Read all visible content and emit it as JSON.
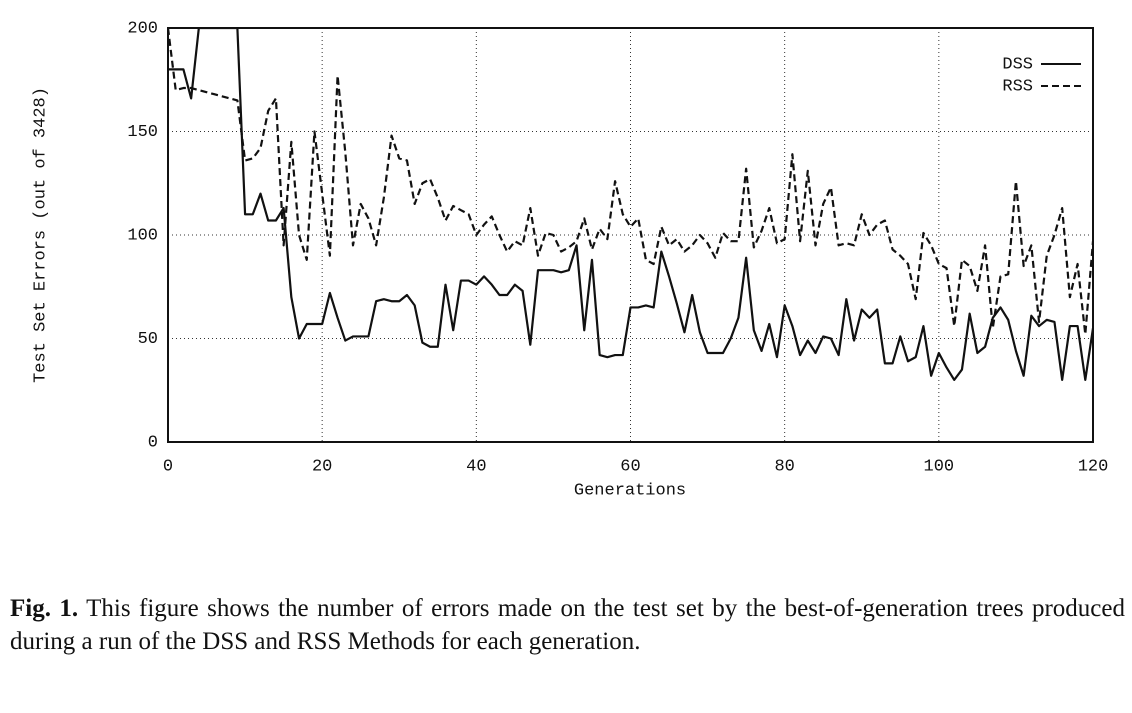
{
  "chart_data": {
    "type": "line",
    "ylabel": "Test Set Errors (out of 3428)",
    "xlabel": "Generations",
    "x": [
      0,
      1,
      2,
      3,
      4,
      5,
      6,
      7,
      8,
      9,
      10,
      11,
      12,
      13,
      14,
      15,
      16,
      17,
      18,
      19,
      20,
      21,
      22,
      23,
      24,
      25,
      26,
      27,
      28,
      29,
      30,
      31,
      32,
      33,
      34,
      35,
      36,
      37,
      38,
      39,
      40,
      41,
      42,
      43,
      44,
      45,
      46,
      47,
      48,
      49,
      50,
      51,
      52,
      53,
      54,
      55,
      56,
      57,
      58,
      59,
      60,
      61,
      62,
      63,
      64,
      65,
      66,
      67,
      68,
      69,
      70,
      71,
      72,
      73,
      74,
      75,
      76,
      77,
      78,
      79,
      80,
      81,
      82,
      83,
      84,
      85,
      86,
      87,
      88,
      89,
      90,
      91,
      92,
      93,
      94,
      95,
      96,
      97,
      98,
      99,
      100,
      101,
      102,
      103,
      104,
      105,
      106,
      107,
      108,
      109,
      110,
      111,
      112,
      113,
      114,
      115,
      116,
      117,
      118,
      119,
      120
    ],
    "series": [
      {
        "name": "DSS",
        "color": "#111111",
        "dash": "solid",
        "values": [
          180,
          180,
          180,
          166,
          200,
          200,
          200,
          200,
          200,
          200,
          110,
          110,
          120,
          107,
          107,
          113,
          70,
          50,
          57,
          57,
          57,
          72,
          60,
          49,
          51,
          51,
          51,
          68,
          69,
          68,
          68,
          71,
          66,
          48,
          46,
          46,
          76,
          54,
          78,
          78,
          76,
          80,
          76,
          71,
          71,
          76,
          73,
          47,
          83,
          83,
          83,
          82,
          83,
          95,
          54,
          88,
          42,
          41,
          42,
          42,
          65,
          65,
          66,
          65,
          92,
          80,
          67,
          53,
          71,
          53,
          43,
          43,
          43,
          50,
          60,
          89,
          54,
          44,
          57,
          41,
          66,
          56,
          42,
          49,
          43,
          51,
          50,
          42,
          69,
          49,
          64,
          60,
          64,
          38,
          38,
          51,
          39,
          41,
          56,
          32,
          43,
          36,
          30,
          35,
          62,
          43,
          46,
          60,
          65,
          59,
          44,
          32,
          61,
          56,
          59,
          58,
          30,
          56,
          56,
          30,
          55
        ]
      },
      {
        "name": "RSS",
        "color": "#111111",
        "dash": "dashed",
        "values": [
          200,
          170,
          171,
          171,
          170,
          169,
          168,
          167,
          166,
          165,
          136,
          137,
          142,
          160,
          166,
          95,
          145,
          100,
          88,
          150,
          120,
          90,
          177,
          140,
          95,
          115,
          108,
          95,
          118,
          148,
          137,
          136,
          115,
          125,
          127,
          118,
          107,
          114,
          112,
          110,
          100,
          105,
          109,
          100,
          92,
          97,
          95,
          113,
          90,
          101,
          100,
          92,
          94,
          97,
          108,
          93,
          103,
          98,
          126,
          110,
          104,
          108,
          88,
          86,
          104,
          95,
          98,
          92,
          95,
          100,
          96,
          89,
          101,
          97,
          97,
          132,
          94,
          102,
          113,
          96,
          98,
          139,
          97,
          131,
          95,
          115,
          123,
          95,
          96,
          95,
          110,
          100,
          105,
          107,
          93,
          90,
          86,
          69,
          101,
          95,
          86,
          84,
          56,
          88,
          85,
          73,
          95,
          55,
          80,
          81,
          126,
          85,
          95,
          58,
          90,
          100,
          113,
          70,
          86,
          52,
          97
        ]
      }
    ],
    "xlim": [
      0,
      120
    ],
    "xticks": [
      0,
      20,
      40,
      60,
      80,
      100,
      120
    ],
    "ylim": [
      0,
      200
    ],
    "yticks": [
      0,
      50,
      100,
      150,
      200
    ],
    "grid": true,
    "legend": "upper right",
    "caption": {
      "label": "Fig. 1.",
      "text": "This figure shows the number of errors made on the test set by the best-of-generation trees produced during a run of the DSS and RSS Methods for each generation."
    }
  }
}
